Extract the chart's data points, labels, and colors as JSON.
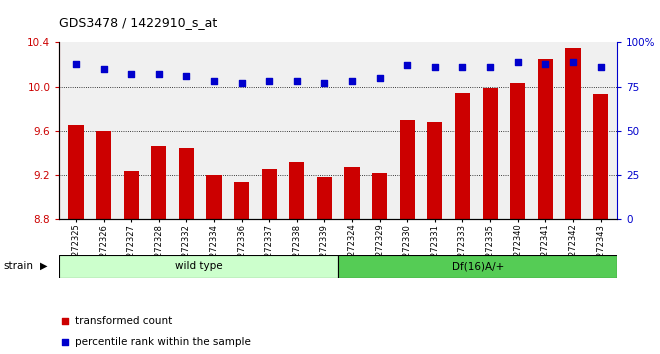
{
  "title": "GDS3478 / 1422910_s_at",
  "categories": [
    "GSM272325",
    "GSM272326",
    "GSM272327",
    "GSM272328",
    "GSM272332",
    "GSM272334",
    "GSM272336",
    "GSM272337",
    "GSM272338",
    "GSM272339",
    "GSM272324",
    "GSM272329",
    "GSM272330",
    "GSM272331",
    "GSM272333",
    "GSM272335",
    "GSM272340",
    "GSM272341",
    "GSM272342",
    "GSM272343"
  ],
  "bar_values": [
    9.65,
    9.6,
    9.24,
    9.46,
    9.45,
    9.2,
    9.14,
    9.26,
    9.32,
    9.18,
    9.27,
    9.22,
    9.7,
    9.68,
    9.94,
    9.99,
    10.03,
    10.25,
    10.35,
    9.93
  ],
  "percentile_values": [
    88,
    85,
    82,
    82,
    81,
    78,
    77,
    78,
    78,
    77,
    78,
    80,
    87,
    86,
    86,
    86,
    89,
    88,
    89,
    86
  ],
  "bar_color": "#cc0000",
  "dot_color": "#0000cc",
  "ylim_left": [
    8.8,
    10.4
  ],
  "ylim_right": [
    0,
    100
  ],
  "yticks_left": [
    8.8,
    9.2,
    9.6,
    10.0,
    10.4
  ],
  "yticks_right": [
    0,
    25,
    50,
    75,
    100
  ],
  "grid_values": [
    9.2,
    9.6,
    10.0
  ],
  "wild_type_count": 10,
  "df16_count": 10,
  "wild_type_label": "wild type",
  "df16_label": "Df(16)A/+",
  "strain_label": "strain",
  "legend_bar_label": "transformed count",
  "legend_dot_label": "percentile rank within the sample",
  "wild_type_color": "#ccffcc",
  "df16_color": "#55cc55",
  "bg_color": "#f0f0f0"
}
